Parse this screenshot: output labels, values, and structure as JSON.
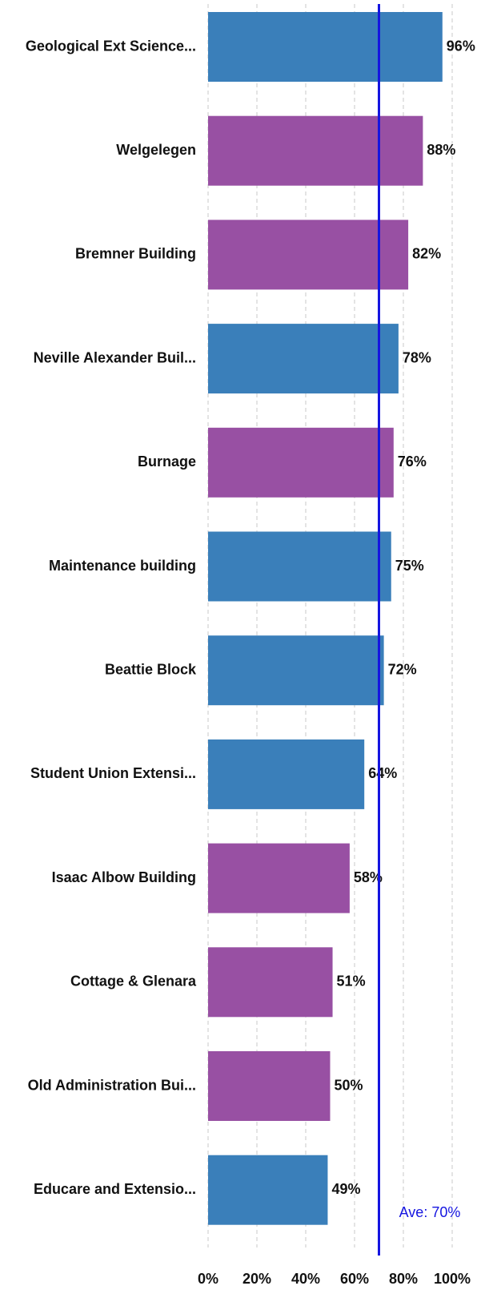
{
  "chart_data": {
    "type": "bar",
    "orientation": "horizontal",
    "categories": [
      "Geological Ext Science...",
      "Welgelegen",
      "Bremner Building",
      "Neville Alexander Buil...",
      "Burnage",
      "Maintenance building",
      "Beattie Block",
      "Student Union Extensi...",
      "Isaac Albow Building",
      "Cottage & Glenara",
      "Old Administration Bui...",
      "Educare and Extensio..."
    ],
    "values": [
      96,
      88,
      82,
      78,
      76,
      75,
      72,
      64,
      58,
      51,
      50,
      49
    ],
    "value_labels": [
      "96%",
      "88%",
      "82%",
      "78%",
      "76%",
      "75%",
      "72%",
      "64%",
      "58%",
      "51%",
      "50%",
      "49%"
    ],
    "colors": [
      "#3a7fba",
      "#9850a3",
      "#9850a3",
      "#3a7fba",
      "#9850a3",
      "#3a7fba",
      "#3a7fba",
      "#3a7fba",
      "#9850a3",
      "#9850a3",
      "#9850a3",
      "#3a7fba"
    ],
    "xlim": [
      0,
      100
    ],
    "xticks": [
      {
        "value": 0,
        "label": "0%"
      },
      {
        "value": 20,
        "label": "20%"
      },
      {
        "value": 40,
        "label": "40%"
      },
      {
        "value": 60,
        "label": "60%"
      },
      {
        "value": 80,
        "label": "80%"
      },
      {
        "value": 100,
        "label": "100%"
      }
    ],
    "grid": true,
    "average": {
      "value": 70,
      "label": "Ave: 70%",
      "color": "#1515e0"
    }
  }
}
